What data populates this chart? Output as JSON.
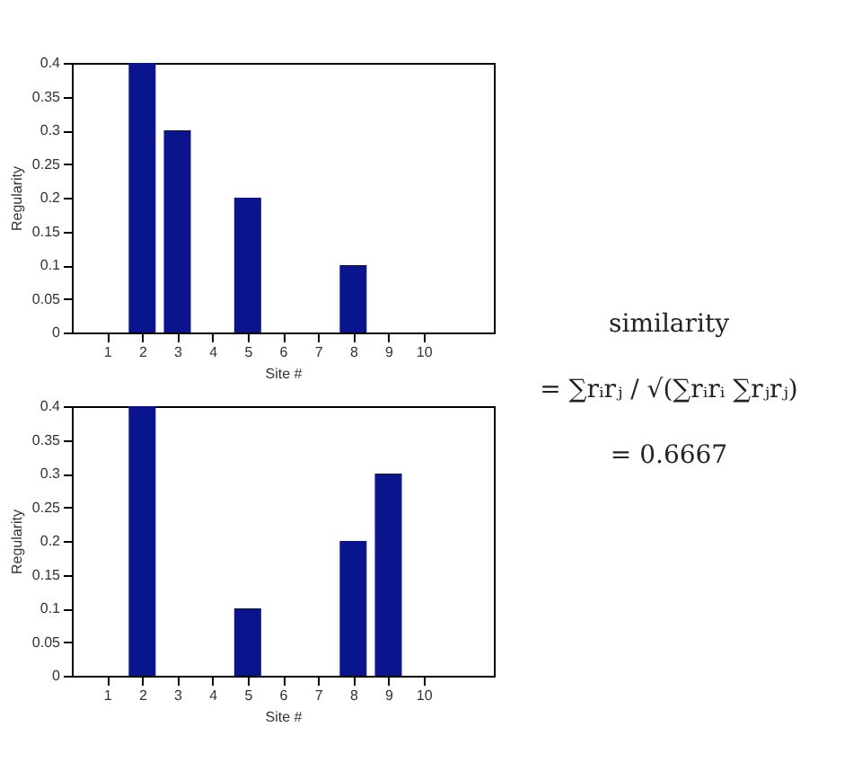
{
  "chart_data": [
    {
      "type": "bar",
      "xlabel": "Site #",
      "ylabel": "Regularity",
      "x": [
        1,
        2,
        3,
        4,
        5,
        6,
        7,
        8,
        9,
        10
      ],
      "values": [
        0,
        0.4,
        0.3,
        0,
        0.2,
        0,
        0,
        0.1,
        0,
        0
      ],
      "color": "#0a148c",
      "xlim": [
        0,
        12
      ],
      "xticks": [
        1,
        2,
        3,
        4,
        5,
        6,
        7,
        8,
        9,
        10
      ],
      "ylim": [
        0,
        0.4
      ],
      "yticks": [
        0,
        0.05,
        0.1,
        0.15,
        0.2,
        0.25,
        0.3,
        0.35,
        0.4
      ]
    },
    {
      "type": "bar",
      "xlabel": "Site #",
      "ylabel": "Regularity",
      "x": [
        1,
        2,
        3,
        4,
        5,
        6,
        7,
        8,
        9,
        10
      ],
      "values": [
        0,
        0.4,
        0,
        0,
        0.1,
        0,
        0,
        0.2,
        0.3,
        0
      ],
      "color": "#0a148c",
      "xlim": [
        0,
        12
      ],
      "xticks": [
        1,
        2,
        3,
        4,
        5,
        6,
        7,
        8,
        9,
        10
      ],
      "ylim": [
        0,
        0.4
      ],
      "yticks": [
        0,
        0.05,
        0.1,
        0.15,
        0.2,
        0.25,
        0.3,
        0.35,
        0.4
      ]
    },
    {
      "type": "other",
      "annotations": [
        "similarity",
        "= ∑rᵢrⱼ / √(∑rᵢrᵢ ∑rⱼrⱼ)",
        "= 0.6667"
      ]
    }
  ]
}
